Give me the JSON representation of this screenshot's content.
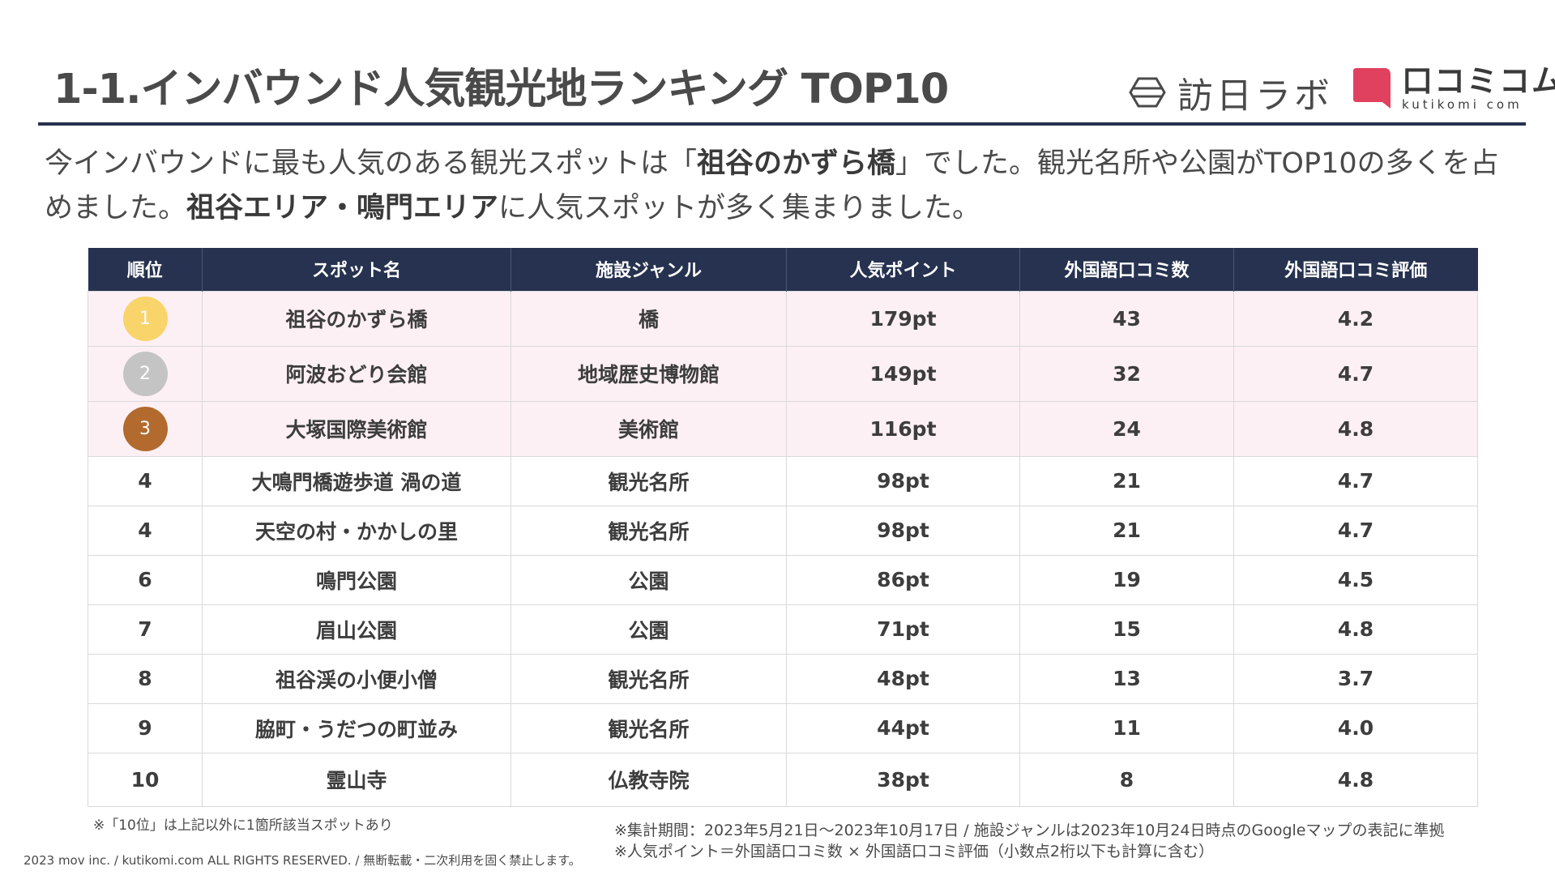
{
  "header": {
    "title": "1-1.インバウンド人気観光地ランキング TOP10",
    "logo_houjitsu": {
      "name": "訪日ラボ",
      "icon": "hexagon-icon"
    },
    "logo_kuchikomi": {
      "name": "口コミコム",
      "sub": "kutikomi com",
      "icon": "speech-bubble-icon",
      "color": "#e0415f"
    }
  },
  "lead": {
    "part1": "今インバウンドに最も人気のある観光スポットは「",
    "bold1": "祖谷のかずら橋",
    "part2": "」でした。観光名所や公園がTOP10の多くを占めました。",
    "bold2": "祖谷エリア・鳴門エリア",
    "part3": "に人気スポットが多く集まりました。"
  },
  "table": {
    "headers": [
      "順位",
      "スポット名",
      "施設ジャンル",
      "人気ポイント",
      "外国語口コミ数",
      "外国語口コミ評価"
    ],
    "rows": [
      {
        "rank": "1",
        "spot": "祖谷のかずら橋",
        "genre": "橋",
        "points": "179pt",
        "reviews": "43",
        "rating": "4.2"
      },
      {
        "rank": "2",
        "spot": "阿波おどり会館",
        "genre": "地域歴史博物館",
        "points": "149pt",
        "reviews": "32",
        "rating": "4.7"
      },
      {
        "rank": "3",
        "spot": "大塚国際美術館",
        "genre": "美術館",
        "points": "116pt",
        "reviews": "24",
        "rating": "4.8"
      },
      {
        "rank": "4",
        "spot": "大鳴門橋遊歩道 渦の道",
        "genre": "観光名所",
        "points": "98pt",
        "reviews": "21",
        "rating": "4.7"
      },
      {
        "rank": "4",
        "spot": "天空の村・かかしの里",
        "genre": "観光名所",
        "points": "98pt",
        "reviews": "21",
        "rating": "4.7"
      },
      {
        "rank": "6",
        "spot": "鳴門公園",
        "genre": "公園",
        "points": "86pt",
        "reviews": "19",
        "rating": "4.5"
      },
      {
        "rank": "7",
        "spot": "眉山公園",
        "genre": "公園",
        "points": "71pt",
        "reviews": "15",
        "rating": "4.8"
      },
      {
        "rank": "8",
        "spot": "祖谷渓の小便小僧",
        "genre": "観光名所",
        "points": "48pt",
        "reviews": "13",
        "rating": "3.7"
      },
      {
        "rank": "9",
        "spot": "脇町・うだつの町並み",
        "genre": "観光名所",
        "points": "44pt",
        "reviews": "11",
        "rating": "4.0"
      },
      {
        "rank": "10",
        "spot": "霊山寺",
        "genre": "仏教寺院",
        "points": "38pt",
        "reviews": "8",
        "rating": "4.8"
      }
    ],
    "medal_colors": {
      "gold": "#f9d46b",
      "silver": "#c4c4c4",
      "bronze": "#b26a2e"
    },
    "colors": {
      "header_bg": "#26324f",
      "top3_bg": "#fdf0f5"
    }
  },
  "footer": {
    "note_left": "※「10位」は上記以外に1箇所該当スポットあり",
    "copyright": "2023 mov inc. / kutikomi.com ALL RIGHTS RESERVED. / 無断転載・二次利用を固く禁止します。",
    "note_right_1": "※集計期間：2023年5月21日～2023年10月17日 / 施設ジャンルは2023年10月24日時点のGoogleマップの表記に準拠",
    "note_right_2": "※人気ポイント＝外国語口コミ数 × 外国語口コミ評価（小数点2桁以下も計算に含む）"
  }
}
